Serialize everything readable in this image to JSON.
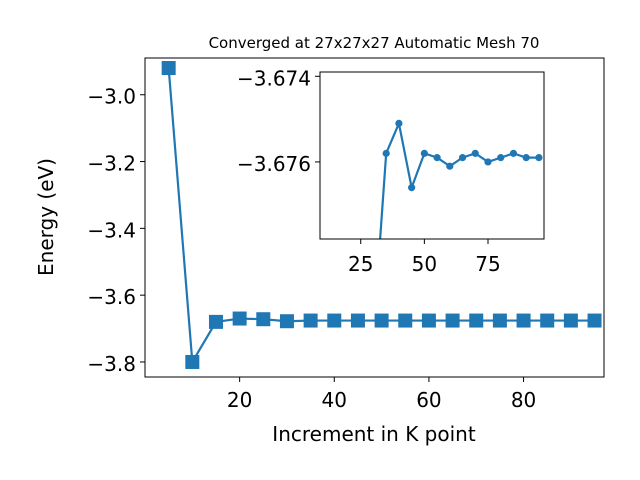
{
  "chart_data": [
    {
      "type": "line",
      "title": "Converged at 27x27x27 Automatic Mesh 70",
      "xlabel": "Increment in K point",
      "ylabel": "Energy (eV)",
      "xlim": [
        0,
        97
      ],
      "ylim": [
        -3.845,
        -2.89
      ],
      "xticks": [
        20,
        40,
        60,
        80
      ],
      "xtick_labels": [
        "20",
        "40",
        "60",
        "80"
      ],
      "yticks": [
        -3.0,
        -3.2,
        -3.4,
        -3.6,
        -3.8
      ],
      "ytick_labels": [
        "−3.0",
        "−3.2",
        "−3.4",
        "−3.6",
        "−3.8"
      ],
      "marker": "square",
      "color": "#1f77b4",
      "x": [
        5,
        10,
        15,
        20,
        25,
        30,
        35,
        40,
        45,
        50,
        55,
        60,
        65,
        70,
        75,
        80,
        85,
        90,
        95
      ],
      "y": [
        -2.92,
        -3.8,
        -3.68,
        -3.67,
        -3.672,
        -3.678,
        -3.676,
        -3.676,
        -3.676,
        -3.676,
        -3.676,
        -3.676,
        -3.676,
        -3.676,
        -3.676,
        -3.676,
        -3.676,
        -3.676,
        -3.676
      ]
    },
    {
      "type": "line",
      "title": "",
      "xlabel": "",
      "ylabel": "",
      "xlim": [
        9,
        97
      ],
      "ylim": [
        -3.6778,
        -3.6739
      ],
      "xticks": [
        25,
        50,
        75
      ],
      "xtick_labels": [
        "25",
        "50",
        "75"
      ],
      "yticks": [
        -3.676,
        -3.674
      ],
      "ytick_labels": [
        "−3.676",
        "−3.674"
      ],
      "marker": "circle",
      "color": "#1f77b4",
      "x": [
        30,
        35,
        40,
        45,
        50,
        55,
        60,
        65,
        70,
        75,
        80,
        85,
        90,
        95
      ],
      "y": [
        -3.68,
        -3.6758,
        -3.6751,
        -3.6766,
        -3.6758,
        -3.6759,
        -3.6761,
        -3.6759,
        -3.6758,
        -3.676,
        -3.6759,
        -3.6758,
        -3.6759,
        -3.6759
      ]
    }
  ]
}
